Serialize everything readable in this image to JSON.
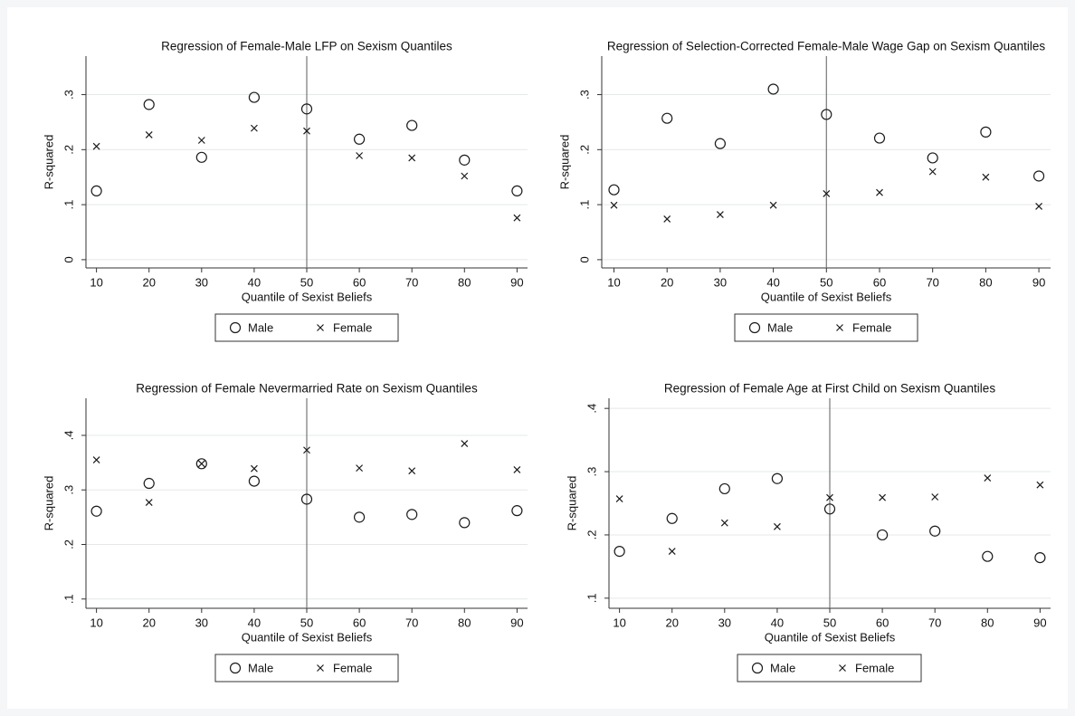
{
  "chart_data": [
    {
      "type": "scatter",
      "title": "Regression of Female-Male LFP on Sexism Quantiles",
      "xlabel": "Quantile of Sexist Beliefs",
      "ylabel": "R-squared",
      "x": [
        10,
        20,
        30,
        40,
        50,
        60,
        70,
        80,
        90
      ],
      "xlim": [
        8,
        92
      ],
      "xticks": [
        10,
        20,
        30,
        40,
        50,
        60,
        70,
        80,
        90
      ],
      "ylim": [
        -0.015,
        0.37
      ],
      "yticks": [
        0,
        {
          "value": 0.1,
          "label": ".1"
        },
        {
          "value": 0.2,
          "label": ".2"
        },
        {
          "value": 0.3,
          "label": ".3"
        }
      ],
      "xline": 50,
      "grid": true,
      "series": [
        {
          "name": "Male",
          "marker": "circle",
          "color": "#1a1a1a",
          "values": [
            0.125,
            0.282,
            0.186,
            0.295,
            0.274,
            0.219,
            0.244,
            0.181,
            0.125
          ]
        },
        {
          "name": "Female",
          "marker": "x",
          "color": "#1a1a1a",
          "values": [
            0.206,
            0.227,
            0.217,
            0.239,
            0.234,
            0.189,
            0.185,
            0.152,
            0.076
          ]
        }
      ]
    },
    {
      "type": "scatter",
      "title": "Regression of Selection-Corrected Female-Male Wage Gap on Sexism Quantiles",
      "xlabel": "Quantile of Sexist Beliefs",
      "ylabel": "R-squared",
      "x": [
        10,
        20,
        30,
        40,
        50,
        60,
        70,
        80,
        90
      ],
      "xlim": [
        7.7,
        92.2
      ],
      "xticks": [
        10,
        20,
        30,
        40,
        50,
        60,
        70,
        80,
        90
      ],
      "ylim": [
        -0.015,
        0.37
      ],
      "yticks": [
        0,
        {
          "value": 0.1,
          "label": ".1"
        },
        {
          "value": 0.2,
          "label": ".2"
        },
        {
          "value": 0.3,
          "label": ".3"
        }
      ],
      "xline": 50,
      "grid": true,
      "series": [
        {
          "name": "Male",
          "marker": "circle",
          "color": "#1a1a1a",
          "values": [
            0.127,
            0.257,
            0.211,
            0.31,
            0.264,
            0.221,
            0.185,
            0.232,
            0.152
          ]
        },
        {
          "name": "Female",
          "marker": "x",
          "color": "#1a1a1a",
          "values": [
            0.099,
            0.074,
            0.082,
            0.099,
            0.12,
            0.122,
            0.16,
            0.15,
            0.097
          ]
        }
      ]
    },
    {
      "type": "scatter",
      "title": "Regression of Female Nevermarried Rate on Sexism Quantiles",
      "xlabel": "Quantile of Sexist Beliefs",
      "ylabel": "R-squared",
      "x": [
        10,
        20,
        30,
        40,
        50,
        60,
        70,
        80,
        90
      ],
      "xlim": [
        8,
        92
      ],
      "xticks": [
        10,
        20,
        30,
        40,
        50,
        60,
        70,
        80,
        90
      ],
      "ylim": [
        0.083,
        0.468
      ],
      "yticks": [
        {
          "value": 0.1,
          "label": ".1"
        },
        {
          "value": 0.2,
          "label": ".2"
        },
        {
          "value": 0.3,
          "label": ".3"
        },
        {
          "value": 0.4,
          "label": ".4"
        }
      ],
      "xline": 50,
      "grid": true,
      "series": [
        {
          "name": "Male",
          "marker": "circle",
          "color": "#1a1a1a",
          "values": [
            0.261,
            0.312,
            0.348,
            0.316,
            0.283,
            0.25,
            0.255,
            0.24,
            0.262
          ]
        },
        {
          "name": "Female",
          "marker": "x",
          "color": "#1a1a1a",
          "values": [
            0.355,
            0.277,
            0.348,
            0.339,
            0.373,
            0.34,
            0.335,
            0.385,
            0.337
          ]
        }
      ]
    },
    {
      "type": "scatter",
      "title": "Regression of Female Age at First Child on Sexism Quantiles",
      "xlabel": "Quantile of Sexist Beliefs",
      "ylabel": "R-squared",
      "x": [
        10,
        20,
        30,
        40,
        50,
        60,
        70,
        80,
        90
      ],
      "xlim": [
        8,
        92
      ],
      "xticks": [
        10,
        20,
        30,
        40,
        50,
        60,
        70,
        80,
        90
      ],
      "ylim": [
        0.084,
        0.416
      ],
      "yticks": [
        {
          "value": 0.1,
          "label": ".1"
        },
        {
          "value": 0.2,
          "label": ".2"
        },
        {
          "value": 0.3,
          "label": ".3"
        },
        {
          "value": 0.4,
          "label": ".4"
        }
      ],
      "xline": 50,
      "grid": true,
      "series": [
        {
          "name": "Male",
          "marker": "circle",
          "color": "#1a1a1a",
          "values": [
            0.174,
            0.226,
            0.273,
            0.289,
            0.241,
            0.2,
            0.206,
            0.166,
            0.164
          ]
        },
        {
          "name": "Female",
          "marker": "x",
          "color": "#1a1a1a",
          "values": [
            0.257,
            0.174,
            0.219,
            0.213,
            0.259,
            0.259,
            0.26,
            0.29,
            0.279
          ]
        }
      ]
    }
  ]
}
